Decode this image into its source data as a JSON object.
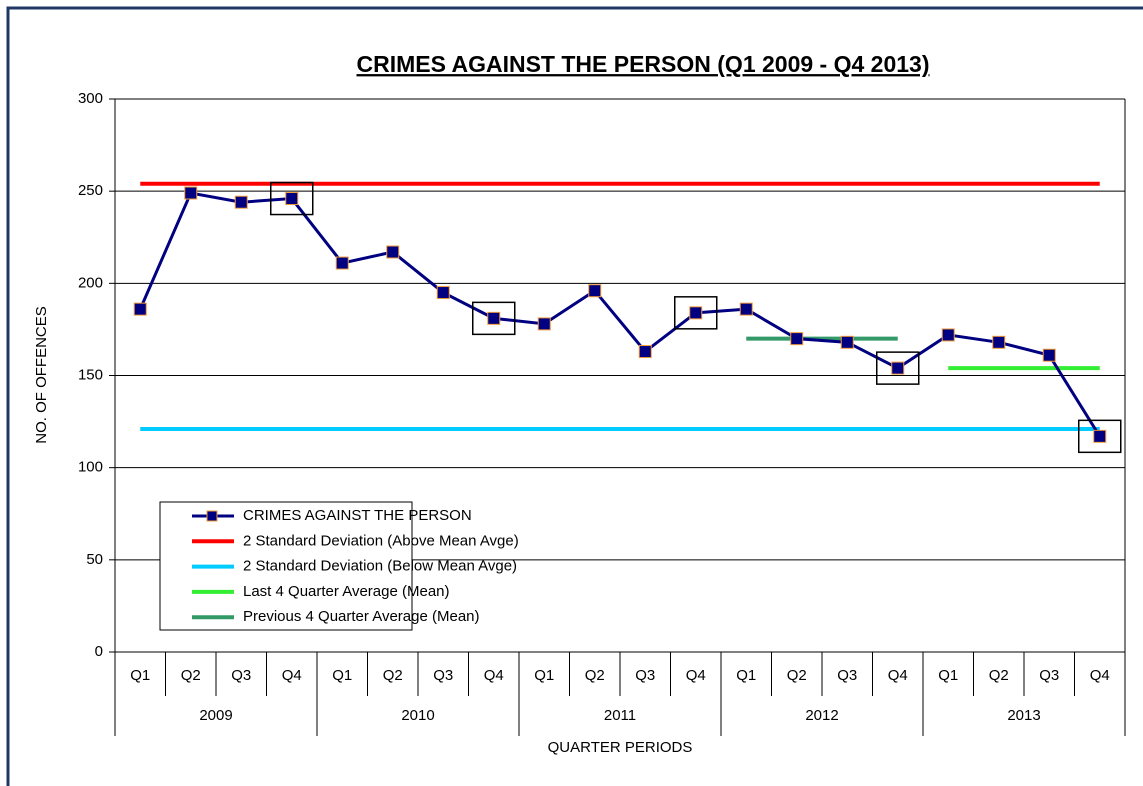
{
  "chart_data": {
    "type": "line",
    "title": "CRIMES AGAINST THE PERSON (Q1 2009 - Q4 2013)",
    "y_label": "NO. OF OFFENCES",
    "x_label": "QUARTER PERIODS",
    "categories": [
      "Q1",
      "Q2",
      "Q3",
      "Q4",
      "Q1",
      "Q2",
      "Q3",
      "Q4",
      "Q1",
      "Q2",
      "Q3",
      "Q4",
      "Q1",
      "Q2",
      "Q3",
      "Q4",
      "Q1",
      "Q2",
      "Q3",
      "Q4"
    ],
    "groups": [
      "2009",
      "2010",
      "2011",
      "2012",
      "2013"
    ],
    "ylim": [
      0,
      300
    ],
    "yticks": [
      0,
      50,
      100,
      150,
      200,
      250,
      300
    ],
    "grid": true,
    "legend": "lower left",
    "highlight_points": [
      3,
      7,
      11,
      15,
      19
    ],
    "series": [
      {
        "name": "CRIMES AGAINST THE PERSON",
        "color": "#000080",
        "marker": true,
        "values": [
          186,
          249,
          244,
          246,
          211,
          217,
          195,
          181,
          178,
          196,
          163,
          184,
          186,
          170,
          168,
          154,
          172,
          168,
          161,
          117
        ]
      },
      {
        "name": "2 Standard Deviation (Above Mean Avge)",
        "color": "#ff0000",
        "values": [
          254,
          254,
          254,
          254,
          254,
          254,
          254,
          254,
          254,
          254,
          254,
          254,
          254,
          254,
          254,
          254,
          254,
          254,
          254,
          254
        ]
      },
      {
        "name": "2 Standard Deviation (Below Mean Avge)",
        "color": "#00ccff",
        "values": [
          121,
          121,
          121,
          121,
          121,
          121,
          121,
          121,
          121,
          121,
          121,
          121,
          121,
          121,
          121,
          121,
          121,
          121,
          121,
          121
        ]
      },
      {
        "name": "Last 4 Quarter Average (Mean)",
        "color": "#33ee33",
        "values": [
          null,
          null,
          null,
          null,
          null,
          null,
          null,
          null,
          null,
          null,
          null,
          null,
          null,
          null,
          null,
          null,
          154,
          154,
          154,
          154
        ]
      },
      {
        "name": "Previous 4 Quarter Average (Mean)",
        "color": "#339966",
        "values": [
          null,
          null,
          null,
          null,
          null,
          null,
          null,
          null,
          null,
          null,
          null,
          null,
          170,
          170,
          170,
          170,
          null,
          null,
          null,
          null
        ]
      }
    ]
  }
}
